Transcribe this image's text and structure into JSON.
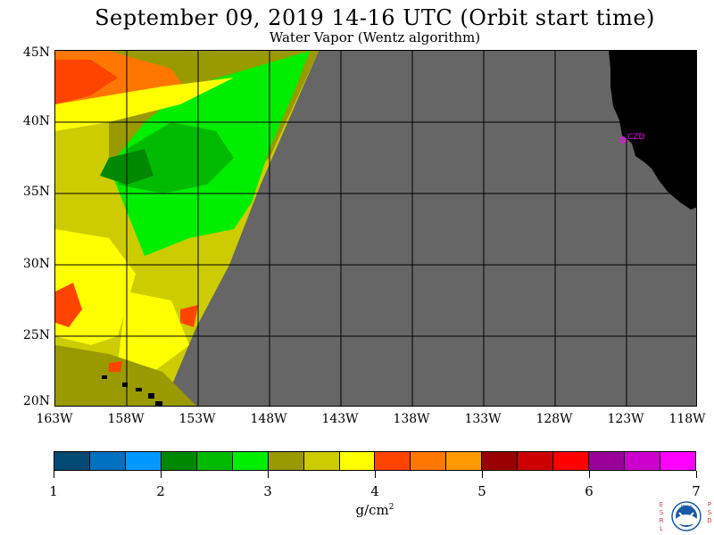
{
  "title": "September 09, 2019  14-16 UTC  (Orbit start time)",
  "subtitle": "Water Vapor (Wentz algorithm)",
  "map": {
    "lat_labels": [
      "45N",
      "40N",
      "35N",
      "30N",
      "25N",
      "20N"
    ],
    "lon_labels": [
      "163W",
      "158W",
      "153W",
      "148W",
      "143W",
      "138W",
      "133W",
      "128W",
      "123W",
      "118W"
    ],
    "station_label": "CZD",
    "station_color": "#ff00ff",
    "land_color": "#000000",
    "no_data_color": "#666666"
  },
  "colorbar": {
    "units": "g/cm",
    "units_exp": "2",
    "tick_labels": [
      "1",
      "2",
      "3",
      "4",
      "5",
      "6",
      "7"
    ],
    "colors": [
      "#004a74",
      "#0070c0",
      "#0099ff",
      "#008800",
      "#00bb00",
      "#00ee00",
      "#999900",
      "#cccc00",
      "#ffff00",
      "#ff4400",
      "#ff7700",
      "#ff9900",
      "#990000",
      "#cc0000",
      "#ff0000",
      "#990099",
      "#cc00cc",
      "#ff00ff"
    ]
  },
  "logo": {
    "name": "noaa-esrl-psd-logo",
    "text": "NOAA",
    "left_letters": "ESRL",
    "right_letters": "PSD"
  }
}
